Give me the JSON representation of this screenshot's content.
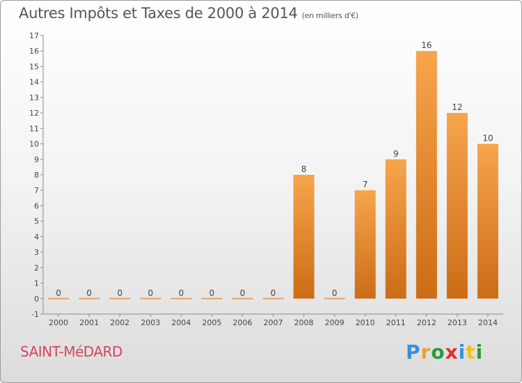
{
  "title": "Autres Impôts et Taxes de 2000 à 2014",
  "unit": "(en milliers d'€)",
  "commune": "SAINT-MéDARD",
  "logo": {
    "text": "Proxiti",
    "letters": [
      {
        "ch": "P",
        "color": "#3a8fd8"
      },
      {
        "ch": "r",
        "color": "#f0a030"
      },
      {
        "ch": "o",
        "color": "#2a9a3a"
      },
      {
        "ch": "x",
        "color": "#e03030"
      },
      {
        "ch": "i",
        "color": "#3a8fd8"
      },
      {
        "ch": "t",
        "color": "#f0c020"
      },
      {
        "ch": "i",
        "color": "#2a9a3a"
      }
    ]
  },
  "chart_data": {
    "type": "bar",
    "categories": [
      "2000",
      "2001",
      "2002",
      "2003",
      "2004",
      "2005",
      "2006",
      "2007",
      "2008",
      "2009",
      "2010",
      "2011",
      "2012",
      "2013",
      "2014"
    ],
    "values": [
      0,
      0,
      0,
      0,
      0,
      0,
      0,
      0,
      8,
      0,
      7,
      9,
      16,
      12,
      10
    ],
    "value_labels": [
      "0",
      "0",
      "0",
      "0",
      "0",
      "0",
      "0",
      "0",
      "8",
      "0",
      "7",
      "9",
      "16",
      "12",
      "10"
    ],
    "ylim": [
      -1,
      17
    ],
    "yticks": [
      -1,
      0,
      1,
      2,
      3,
      4,
      5,
      6,
      7,
      8,
      9,
      10,
      11,
      12,
      13,
      14,
      15,
      16,
      17
    ],
    "grid": false,
    "legend": "none",
    "colors": {
      "bar_top": "#f7a54c",
      "bar_bottom": "#cc6c17",
      "zero_bar": "#e7a36a",
      "axis": "#8a8a8a",
      "label": "#444444"
    }
  }
}
